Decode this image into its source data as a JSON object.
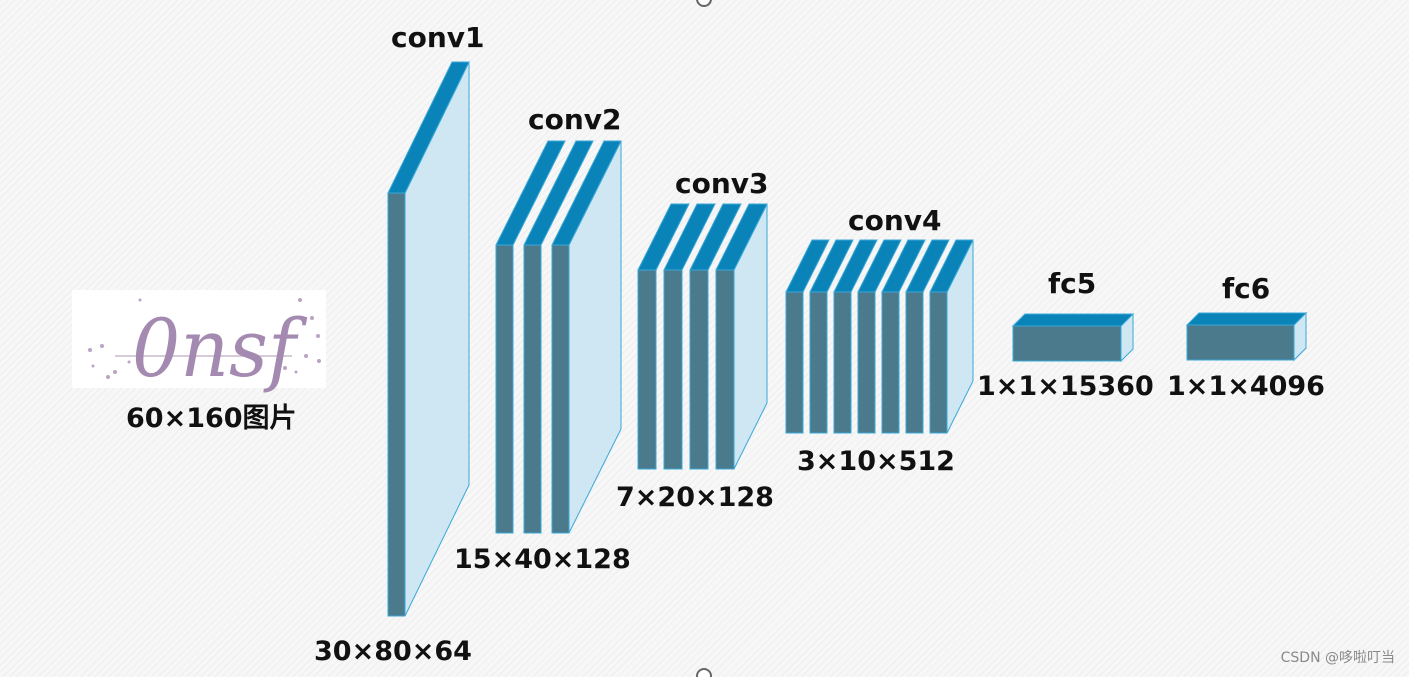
{
  "input": {
    "sample_text": "0nsf",
    "label": "60×160图片"
  },
  "layers": [
    {
      "id": "conv1",
      "name": "conv1",
      "dims": "30×80×64"
    },
    {
      "id": "conv2",
      "name": "conv2",
      "dims": "15×40×128"
    },
    {
      "id": "conv3",
      "name": "conv3",
      "dims": "7×20×128"
    },
    {
      "id": "conv4",
      "name": "conv4",
      "dims": "3×10×512"
    },
    {
      "id": "fc5",
      "name": "fc5",
      "dims": "1×1×15360"
    },
    {
      "id": "fc6",
      "name": "fc6",
      "dims": "1×1×4096"
    }
  ],
  "watermark": "CSDN @哆啦叮当",
  "colors": {
    "top_face": "#0a84b8",
    "front_face": "#4a7a8c",
    "side_face": "#cfe7f2",
    "edge": "#3aa8d8",
    "text_handwriting": "#a48ab0"
  }
}
